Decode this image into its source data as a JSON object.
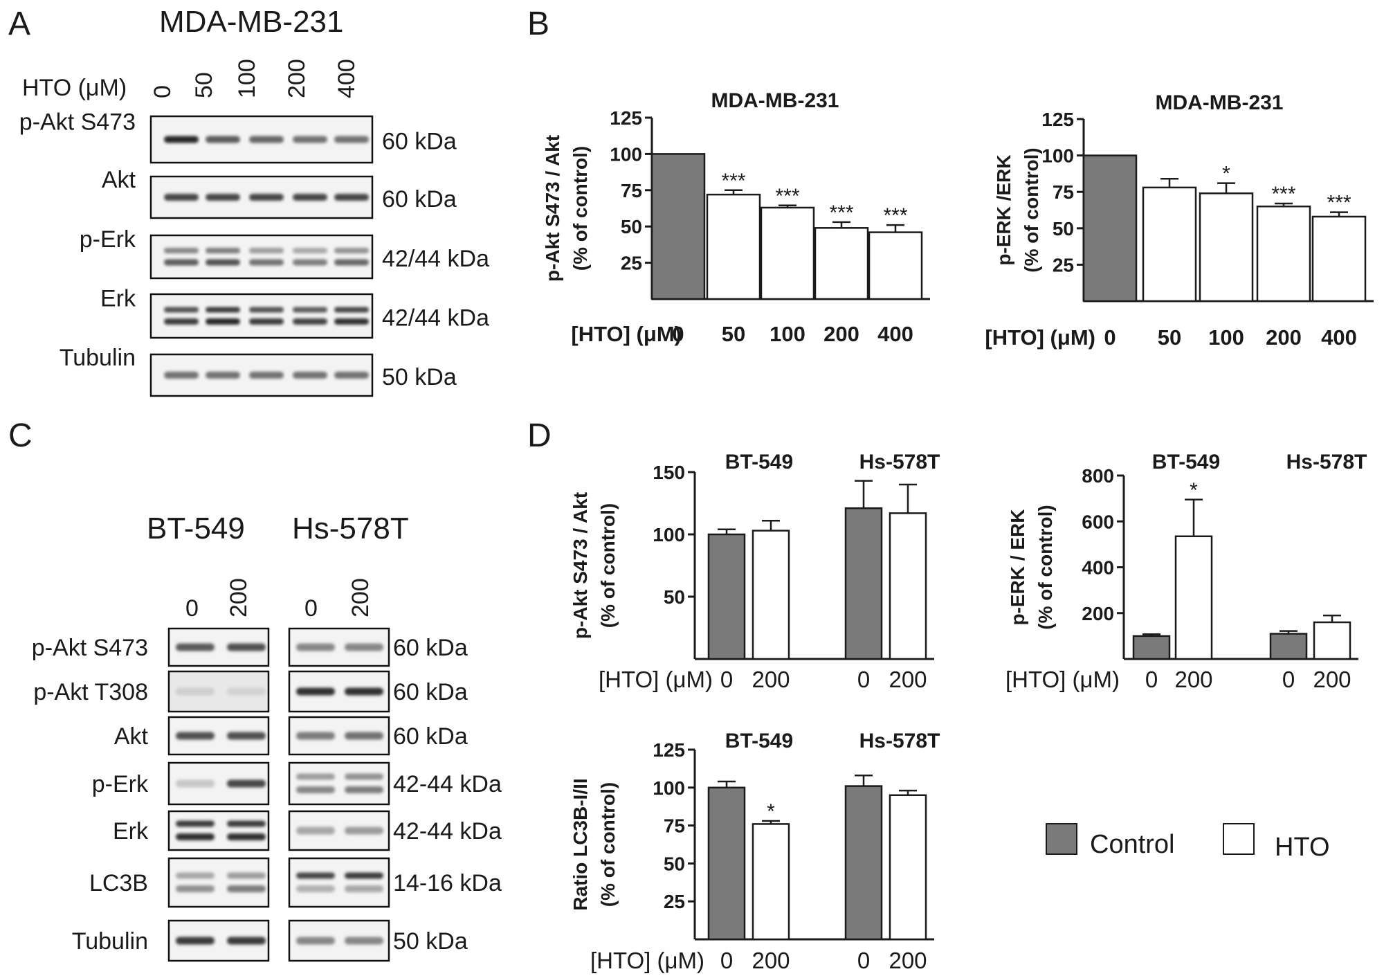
{
  "panels": {
    "A": {
      "label": "A",
      "title": "MDA-MB-231",
      "lane_header": "HTO (μM)",
      "lanes": [
        "0",
        "50",
        "100",
        "200",
        "400"
      ],
      "rows": [
        {
          "label": "p-Akt S473",
          "kda": "60 kDa"
        },
        {
          "label": "Akt",
          "kda": "60 kDa"
        },
        {
          "label": "p-Erk",
          "kda": "42/44 kDa"
        },
        {
          "label": "Erk",
          "kda": "42/44 kDa"
        },
        {
          "label": "Tubulin",
          "kda": "50 kDa"
        }
      ]
    },
    "B": {
      "label": "B"
    },
    "C": {
      "label": "C",
      "group_titles": [
        "BT-549",
        "Hs-578T"
      ],
      "lanes": [
        "0",
        "200"
      ],
      "rows": [
        {
          "label": "p-Akt S473",
          "kda": "60 kDa"
        },
        {
          "label": "p-Akt T308",
          "kda": "60 kDa"
        },
        {
          "label": "Akt",
          "kda": "60 kDa"
        },
        {
          "label": "p-Erk",
          "kda": "42-44 kDa"
        },
        {
          "label": "Erk",
          "kda": "42-44 kDa"
        },
        {
          "label": "LC3B",
          "kda": "14-16 kDa"
        },
        {
          "label": "Tubulin",
          "kda": "50 kDa"
        }
      ]
    },
    "D": {
      "label": "D"
    }
  },
  "legend": {
    "control": "Control",
    "hto": "HTO"
  },
  "colors": {
    "control": "#7a7a7a",
    "hto": "#ffffff",
    "axis": "#1a1a1a"
  },
  "chart_data": [
    {
      "type": "bar",
      "panel": "B",
      "title": "MDA-MB-231",
      "ylabel": [
        "p-Akt S473 / Akt",
        "(% of control)"
      ],
      "xlabel_lead": "[HTO] (μM)",
      "categories": [
        "0",
        "50",
        "100",
        "200",
        "400"
      ],
      "values": [
        100,
        72,
        63,
        49,
        46
      ],
      "errors": [
        0,
        3,
        1.5,
        4,
        5
      ],
      "fills": [
        "control",
        "hto",
        "hto",
        "hto",
        "hto"
      ],
      "significance": [
        "",
        "***",
        "***",
        "***",
        "***"
      ],
      "yticks": [
        25,
        50,
        75,
        100,
        125
      ],
      "ylim": [
        0,
        125
      ]
    },
    {
      "type": "bar",
      "panel": "B",
      "title": "MDA-MB-231",
      "ylabel": [
        "p-ERK /ERK",
        "(% of control)"
      ],
      "xlabel_lead": "[HTO] (μM)",
      "categories": [
        "0",
        "50",
        "100",
        "200",
        "400"
      ],
      "values": [
        100,
        78,
        74,
        65,
        58
      ],
      "errors": [
        0,
        6,
        7,
        2,
        3
      ],
      "fills": [
        "control",
        "hto",
        "hto",
        "hto",
        "hto"
      ],
      "significance": [
        "",
        "",
        "*",
        "***",
        "***"
      ],
      "yticks": [
        25,
        50,
        75,
        100,
        125
      ],
      "ylim": [
        0,
        125
      ]
    },
    {
      "type": "bar",
      "panel": "D",
      "group_titles": [
        "BT-549",
        "Hs-578T"
      ],
      "ylabel": [
        "p-Akt S473 / Akt",
        "(% of control)"
      ],
      "xlabel_lead": "[HTO] (μM)",
      "categories": [
        "0",
        "200",
        "0",
        "200"
      ],
      "values": [
        100,
        103,
        121,
        117
      ],
      "errors": [
        4,
        8,
        22,
        23
      ],
      "fills": [
        "control",
        "hto",
        "control",
        "hto"
      ],
      "significance": [
        "",
        "",
        "",
        ""
      ],
      "yticks": [
        50,
        100,
        150
      ],
      "ylim": [
        0,
        150
      ]
    },
    {
      "type": "bar",
      "panel": "D",
      "group_titles": [
        "BT-549",
        "Hs-578T"
      ],
      "ylabel": [
        "p-ERK / ERK",
        "(% of control)"
      ],
      "xlabel_lead": "[HTO] (μM)",
      "categories": [
        "0",
        "200",
        "0",
        "200"
      ],
      "values": [
        100,
        535,
        110,
        160
      ],
      "errors": [
        8,
        160,
        12,
        30
      ],
      "fills": [
        "control",
        "hto",
        "control",
        "hto"
      ],
      "significance": [
        "",
        "*",
        "",
        ""
      ],
      "yticks": [
        200,
        400,
        600,
        800
      ],
      "ylim": [
        0,
        800
      ]
    },
    {
      "type": "bar",
      "panel": "D",
      "group_titles": [
        "BT-549",
        "Hs-578T"
      ],
      "ylabel": [
        "Ratio LC3B-I/II",
        "(% of control)"
      ],
      "xlabel_lead": "[HTO] (μM)",
      "categories": [
        "0",
        "200",
        "0",
        "200"
      ],
      "values": [
        100,
        76,
        101,
        95
      ],
      "errors": [
        4,
        2,
        7,
        3
      ],
      "fills": [
        "control",
        "hto",
        "control",
        "hto"
      ],
      "significance": [
        "",
        "*",
        "",
        ""
      ],
      "yticks": [
        25,
        50,
        75,
        100,
        125
      ],
      "ylim": [
        0,
        125
      ]
    }
  ]
}
